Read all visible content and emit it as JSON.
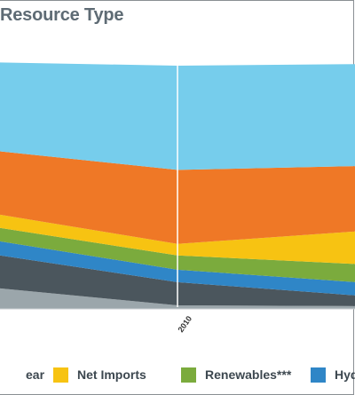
{
  "title": "Resource Type",
  "chart_data": {
    "type": "area",
    "stacked": true,
    "x_ticks": [
      "2010"
    ],
    "series": [
      {
        "key": "gray",
        "name": "",
        "color": "#9ba6ab",
        "values": [
          25,
          4,
          3
        ]
      },
      {
        "key": "dark",
        "name": "",
        "color": "#4b565d",
        "values": [
          38,
          26,
          10
        ]
      },
      {
        "key": "hydro",
        "name": "Hyd",
        "color": "#2f86c7",
        "values": [
          16,
          14,
          15
        ]
      },
      {
        "key": "renewables",
        "name": "Renewables***",
        "color": "#7bab3d",
        "values": [
          15,
          16,
          21
        ]
      },
      {
        "key": "imports",
        "name": "Net Imports",
        "color": "#f7c312",
        "values": [
          15,
          13,
          40
        ]
      },
      {
        "key": "orange",
        "name": "",
        "color": "#ef7826",
        "values": [
          70,
          83,
          72
        ]
      },
      {
        "key": "sky",
        "name": "",
        "color": "#76cdec",
        "values": [
          98,
          117,
          114
        ]
      }
    ],
    "legend": [
      {
        "label": "ear",
        "color": "#4b565d"
      },
      {
        "label": "Net Imports",
        "color": "#f7c312"
      },
      {
        "label": "Renewables***",
        "color": "#7bab3d"
      },
      {
        "label": "Hyd",
        "color": "#2f86c7"
      }
    ],
    "grid": false,
    "legend_position": "bottom"
  }
}
